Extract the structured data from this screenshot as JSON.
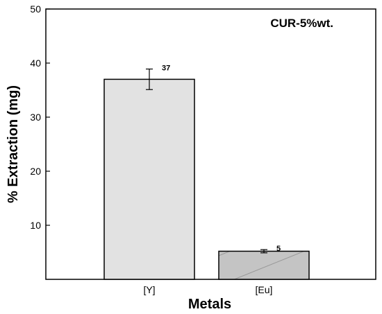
{
  "chart_data": {
    "type": "bar",
    "categories": [
      "[Y]",
      "[Eu]"
    ],
    "values": [
      37,
      5.2
    ],
    "errors": [
      1.9,
      0.3
    ],
    "data_labels": [
      "37",
      "5"
    ],
    "ylabel": "% Extraction (mg)",
    "xlabel": "Metals",
    "annotation": "CUR-5%wt.",
    "ylim": [
      0,
      50
    ],
    "yticks": [
      10,
      20,
      30,
      40,
      50
    ],
    "bar_colors": [
      "#e2e2e2",
      "#c4c4c4"
    ],
    "hatch": [
      "none",
      "diagonal"
    ],
    "grid": false
  }
}
